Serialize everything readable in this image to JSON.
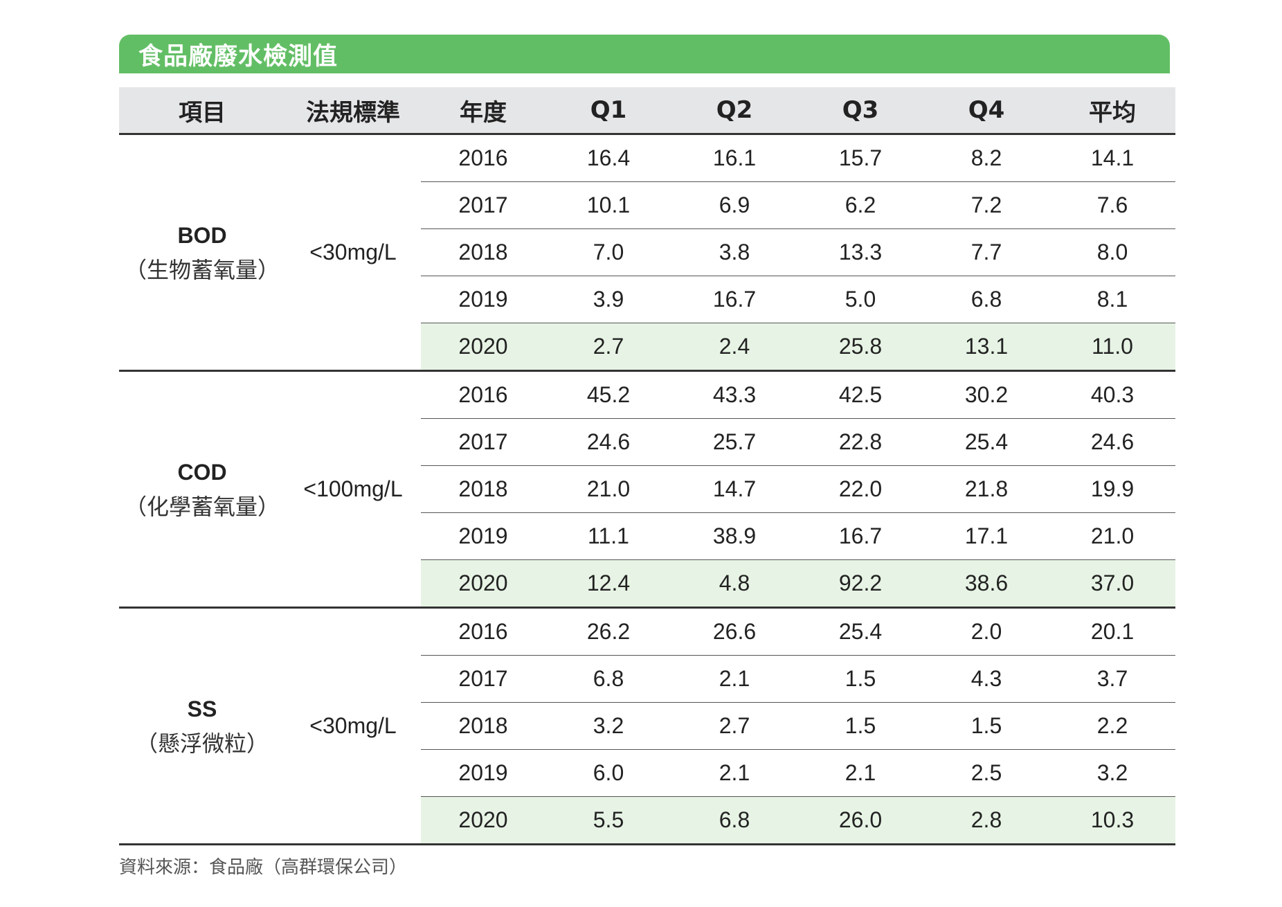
{
  "title": "食品廠廢水檢測值",
  "headers": [
    "項目",
    "法規標準",
    "年度",
    "Q1",
    "Q2",
    "Q3",
    "Q4",
    "平均"
  ],
  "groups": [
    {
      "code": "BOD",
      "name": "（生物蓄氧量）",
      "standard": "<30mg/L",
      "rows": [
        {
          "year": "2016",
          "q1": "16.4",
          "q2": "16.1",
          "q3": "15.7",
          "q4": "8.2",
          "avg": "14.1"
        },
        {
          "year": "2017",
          "q1": "10.1",
          "q2": "6.9",
          "q3": "6.2",
          "q4": "7.2",
          "avg": "7.6"
        },
        {
          "year": "2018",
          "q1": "7.0",
          "q2": "3.8",
          "q3": "13.3",
          "q4": "7.7",
          "avg": "8.0"
        },
        {
          "year": "2019",
          "q1": "3.9",
          "q2": "16.7",
          "q3": "5.0",
          "q4": "6.8",
          "avg": "8.1"
        },
        {
          "year": "2020",
          "q1": "2.7",
          "q2": "2.4",
          "q3": "25.8",
          "q4": "13.1",
          "avg": "11.0"
        }
      ]
    },
    {
      "code": "COD",
      "name": "（化學蓄氧量）",
      "standard": "<100mg/L",
      "rows": [
        {
          "year": "2016",
          "q1": "45.2",
          "q2": "43.3",
          "q3": "42.5",
          "q4": "30.2",
          "avg": "40.3"
        },
        {
          "year": "2017",
          "q1": "24.6",
          "q2": "25.7",
          "q3": "22.8",
          "q4": "25.4",
          "avg": "24.6"
        },
        {
          "year": "2018",
          "q1": "21.0",
          "q2": "14.7",
          "q3": "22.0",
          "q4": "21.8",
          "avg": "19.9"
        },
        {
          "year": "2019",
          "q1": "11.1",
          "q2": "38.9",
          "q3": "16.7",
          "q4": "17.1",
          "avg": "21.0"
        },
        {
          "year": "2020",
          "q1": "12.4",
          "q2": "4.8",
          "q3": "92.2",
          "q4": "38.6",
          "avg": "37.0"
        }
      ]
    },
    {
      "code": "SS",
      "name": "（懸浮微粒）",
      "standard": "<30mg/L",
      "rows": [
        {
          "year": "2016",
          "q1": "26.2",
          "q2": "26.6",
          "q3": "25.4",
          "q4": "2.0",
          "avg": "20.1"
        },
        {
          "year": "2017",
          "q1": "6.8",
          "q2": "2.1",
          "q3": "1.5",
          "q4": "4.3",
          "avg": "3.7"
        },
        {
          "year": "2018",
          "q1": "3.2",
          "q2": "2.7",
          "q3": "1.5",
          "q4": "1.5",
          "avg": "2.2"
        },
        {
          "year": "2019",
          "q1": "6.0",
          "q2": "2.1",
          "q3": "2.1",
          "q4": "2.5",
          "avg": "3.2"
        },
        {
          "year": "2020",
          "q1": "5.5",
          "q2": "6.8",
          "q3": "26.0",
          "q4": "2.8",
          "avg": "10.3"
        }
      ]
    }
  ],
  "highlight_year": "2020",
  "colors": {
    "title_bg": "#62be65",
    "header_bg": "#e5e6e8",
    "highlight_bg": "#e7f4e5"
  },
  "source": "資料來源：食品廠（高群環保公司）"
}
